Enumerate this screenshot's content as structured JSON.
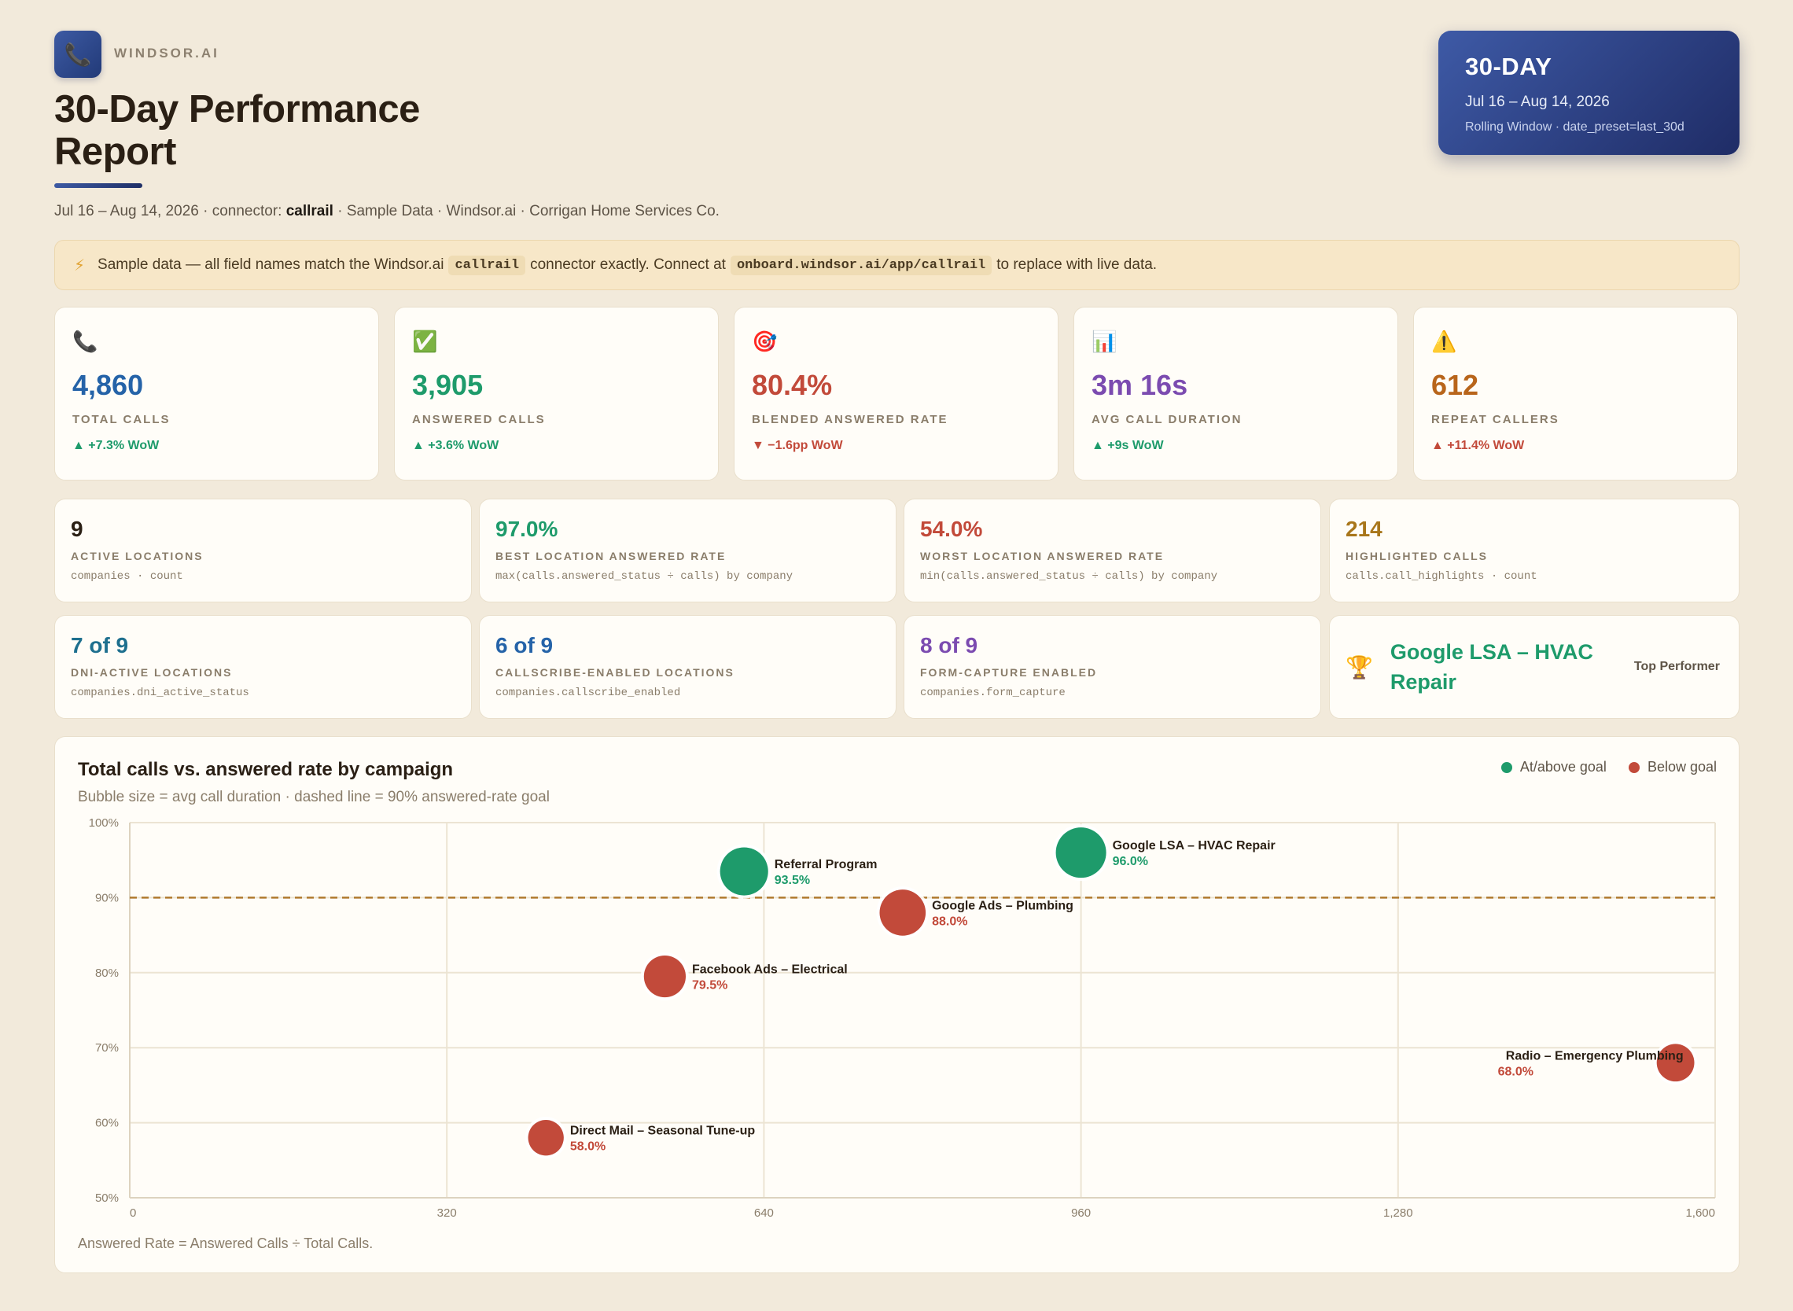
{
  "brand": {
    "name": "WINDSOR.AI",
    "icon": "phone-icon"
  },
  "title": "30-Day Performance Report",
  "subline": {
    "prefix": "Jul 16 – Aug 14, 2026 · connector: ",
    "connector": "callrail",
    "suffix": " · Sample Data · Windsor.ai · Corrigan Home Services Co."
  },
  "period": {
    "label": "30-DAY",
    "range": "Jul 16 – Aug 14, 2026",
    "note": "Rolling Window · date_preset=last_30d"
  },
  "notice": {
    "text1": "Sample data — all field names match the Windsor.ai",
    "code1": "callrail",
    "text2": "connector exactly. Connect at",
    "code2": "onboard.windsor.ai/app/callrail",
    "text3": "to replace with live data."
  },
  "kpis": [
    {
      "icon": "phone-icon",
      "glyph": "📞",
      "value": "4,860",
      "label": "TOTAL CALLS",
      "delta": "▲ +7.3% WoW",
      "trend": "up",
      "color": "#2563a8"
    },
    {
      "icon": "check-icon",
      "glyph": "✅",
      "value": "3,905",
      "label": "ANSWERED CALLS",
      "delta": "▲ +3.6% WoW",
      "trend": "up",
      "color": "#1e9b6b"
    },
    {
      "icon": "target-icon",
      "glyph": "🎯",
      "value": "80.4%",
      "label": "BLENDED ANSWERED RATE",
      "delta": "▼ −1.6pp WoW",
      "trend": "down",
      "color": "#c24a3a"
    },
    {
      "icon": "bar-chart-icon",
      "glyph": "📊",
      "value": "3m 16s",
      "label": "AVG CALL DURATION",
      "delta": "▲ +9s WoW",
      "trend": "up",
      "color": "#7b4bb0"
    },
    {
      "icon": "warning-icon",
      "glyph": "⚠️",
      "value": "612",
      "label": "REPEAT CALLERS",
      "delta": "▲ +11.4% WoW",
      "trend": "down",
      "color": "#b8651b"
    }
  ],
  "stats_row1": [
    {
      "value": "9",
      "label": "ACTIVE LOCATIONS",
      "src": "companies · count",
      "color": "#2a1f14"
    },
    {
      "value": "97.0%",
      "label": "BEST LOCATION ANSWERED RATE",
      "src": "max(calls.answered_status ÷ calls) by company",
      "color": "#1e9b6b"
    },
    {
      "value": "54.0%",
      "label": "WORST LOCATION ANSWERED RATE",
      "src": "min(calls.answered_status ÷ calls) by company",
      "color": "#c24a3a"
    },
    {
      "value": "214",
      "label": "HIGHLIGHTED CALLS",
      "src": "calls.call_highlights · count",
      "color": "#a8761b"
    }
  ],
  "stats_row2": [
    {
      "value": "7 of 9",
      "label": "DNI-ACTIVE LOCATIONS",
      "src": "companies.dni_active_status",
      "color": "#1d6f8e"
    },
    {
      "value": "6 of 9",
      "label": "CALLSCRIBE-ENABLED LOCATIONS",
      "src": "companies.callscribe_enabled",
      "color": "#2563a8"
    },
    {
      "value": "8 of 9",
      "label": "FORM-CAPTURE ENABLED",
      "src": "companies.form_capture",
      "color": "#7b4bb0"
    }
  ],
  "top_performer": {
    "icon": "trophy-icon",
    "name": "Google LSA – HVAC Repair",
    "label": "Top Performer"
  },
  "chart": {
    "title": "Total calls vs. answered rate by campaign",
    "subtitle": "Bubble size = avg call duration · dashed line = 90% answered-rate goal",
    "footnote": "Answered Rate = Answered Calls ÷ Total Calls.",
    "legend": [
      {
        "label": "At/above goal",
        "color": "#1e9b6b"
      },
      {
        "label": "Below goal",
        "color": "#c24a3a"
      }
    ]
  },
  "chart_data": {
    "type": "scatter",
    "title": "Total calls vs. answered rate by campaign",
    "xlabel": "",
    "ylabel": "",
    "xlim": [
      0,
      1600
    ],
    "ylim": [
      50,
      100
    ],
    "x_ticks": [
      "0",
      "320",
      "640",
      "960",
      "1,280",
      "1,600"
    ],
    "y_ticks": [
      "50%",
      "60%",
      "70%",
      "80%",
      "90%",
      "100%"
    ],
    "goal_line": 90,
    "grid": true,
    "legend_position": "top-right",
    "points": [
      {
        "name": "Google LSA – HVAC Repair",
        "x": 960,
        "y": 96.0,
        "label": "96.0%",
        "size": 1.0,
        "status": "at_goal"
      },
      {
        "name": "Referral Program",
        "x": 620,
        "y": 93.5,
        "label": "93.5%",
        "size": 0.92,
        "status": "at_goal"
      },
      {
        "name": "Google Ads – Plumbing",
        "x": 780,
        "y": 88.0,
        "label": "88.0%",
        "size": 0.85,
        "status": "below_goal"
      },
      {
        "name": "Facebook Ads – Electrical",
        "x": 540,
        "y": 79.5,
        "label": "79.5%",
        "size": 0.7,
        "status": "below_goal"
      },
      {
        "name": "Radio – Emergency Plumbing",
        "x": 1560,
        "y": 68.0,
        "label": "68.0%",
        "size": 0.55,
        "status": "below_goal"
      },
      {
        "name": "Direct Mail – Seasonal Tune-up",
        "x": 420,
        "y": 58.0,
        "label": "58.0%",
        "size": 0.48,
        "status": "below_goal"
      }
    ]
  }
}
